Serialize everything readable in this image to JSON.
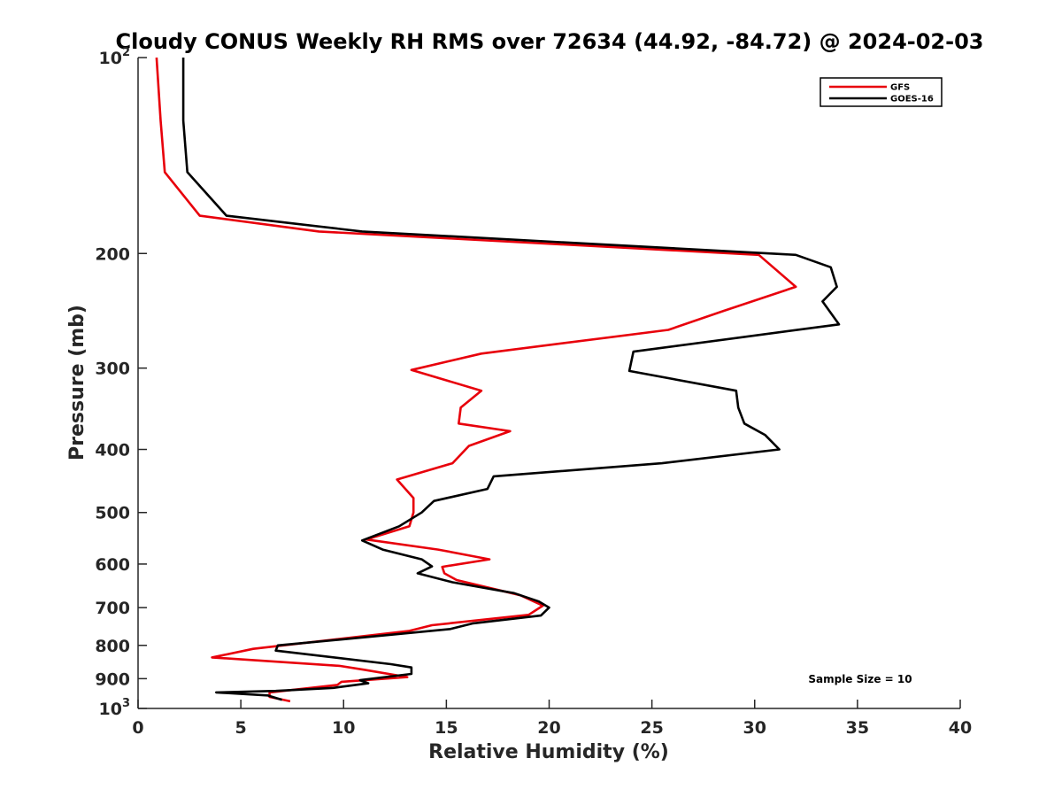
{
  "chart_data": {
    "type": "line",
    "title": "Cloudy CONUS Weekly RH RMS over 72634 (44.92, -84.72) @ 2024-02-03",
    "xlabel": "Relative Humidity (%)",
    "ylabel": "Pressure (mb)",
    "xlim": [
      0,
      40
    ],
    "ylim": [
      100,
      1000
    ],
    "y_scale": "log",
    "y_reversed": true,
    "grid": false,
    "legend_position": "top-right",
    "x_ticks": [
      0,
      5,
      10,
      15,
      20,
      25,
      30,
      35,
      40
    ],
    "y_ticks": [
      {
        "value": 100,
        "base": "10",
        "exp": "2"
      },
      {
        "value": 200,
        "label": "200"
      },
      {
        "value": 300,
        "label": "300"
      },
      {
        "value": 400,
        "label": "400"
      },
      {
        "value": 500,
        "label": "500"
      },
      {
        "value": 600,
        "label": "600"
      },
      {
        "value": 700,
        "label": "700"
      },
      {
        "value": 800,
        "label": "800"
      },
      {
        "value": 900,
        "label": "900"
      },
      {
        "value": 1000,
        "base": "10",
        "exp": "3"
      }
    ],
    "annotation": "Sample Size = 10",
    "series": [
      {
        "name": "GFS",
        "color": "#e8000b",
        "points": [
          [
            0.9,
            100
          ],
          [
            1.1,
            125
          ],
          [
            1.3,
            150
          ],
          [
            3.0,
            175
          ],
          [
            8.8,
            185
          ],
          [
            30.2,
            201
          ],
          [
            32.0,
            225
          ],
          [
            28.5,
            245
          ],
          [
            25.8,
            262
          ],
          [
            16.7,
            285
          ],
          [
            13.3,
            302
          ],
          [
            16.7,
            325
          ],
          [
            15.7,
            345
          ],
          [
            15.6,
            365
          ],
          [
            18.1,
            375
          ],
          [
            16.1,
            395
          ],
          [
            15.3,
            420
          ],
          [
            12.6,
            445
          ],
          [
            13.4,
            475
          ],
          [
            13.4,
            500
          ],
          [
            13.2,
            525
          ],
          [
            11.1,
            550
          ],
          [
            14.6,
            570
          ],
          [
            17.1,
            590
          ],
          [
            14.8,
            606
          ],
          [
            14.9,
            620
          ],
          [
            15.5,
            635
          ],
          [
            18.6,
            670
          ],
          [
            19.7,
            695
          ],
          [
            19.0,
            718
          ],
          [
            14.3,
            745
          ],
          [
            13.2,
            760
          ],
          [
            5.6,
            810
          ],
          [
            3.6,
            835
          ],
          [
            9.8,
            860
          ],
          [
            11.0,
            872
          ],
          [
            13.1,
            895
          ],
          [
            9.9,
            910
          ],
          [
            9.7,
            920
          ],
          [
            6.4,
            945
          ],
          [
            6.4,
            960
          ],
          [
            7.4,
            975
          ]
        ]
      },
      {
        "name": "GOES-16",
        "color": "#000000",
        "points": [
          [
            2.2,
            100
          ],
          [
            2.2,
            125
          ],
          [
            2.4,
            150
          ],
          [
            4.3,
            175
          ],
          [
            10.9,
            185
          ],
          [
            32.0,
            201
          ],
          [
            33.7,
            210
          ],
          [
            34.0,
            225
          ],
          [
            33.3,
            237
          ],
          [
            34.1,
            257
          ],
          [
            24.1,
            283
          ],
          [
            23.9,
            303
          ],
          [
            29.1,
            325
          ],
          [
            29.2,
            345
          ],
          [
            29.5,
            365
          ],
          [
            30.5,
            380
          ],
          [
            31.2,
            400
          ],
          [
            25.5,
            420
          ],
          [
            17.3,
            440
          ],
          [
            17.0,
            460
          ],
          [
            14.4,
            480
          ],
          [
            13.8,
            500
          ],
          [
            12.7,
            525
          ],
          [
            10.9,
            552
          ],
          [
            11.9,
            570
          ],
          [
            13.8,
            590
          ],
          [
            14.3,
            605
          ],
          [
            13.6,
            620
          ],
          [
            15.3,
            640
          ],
          [
            18.3,
            665
          ],
          [
            19.5,
            685
          ],
          [
            20.0,
            700
          ],
          [
            19.6,
            720
          ],
          [
            16.3,
            740
          ],
          [
            15.2,
            755
          ],
          [
            12.4,
            770
          ],
          [
            6.8,
            800
          ],
          [
            6.7,
            815
          ],
          [
            12.3,
            855
          ],
          [
            13.3,
            865
          ],
          [
            13.3,
            885
          ],
          [
            10.8,
            905
          ],
          [
            11.2,
            915
          ],
          [
            9.5,
            930
          ],
          [
            6.7,
            940
          ],
          [
            3.8,
            945
          ],
          [
            6.3,
            955
          ],
          [
            7.0,
            970
          ]
        ]
      }
    ]
  }
}
